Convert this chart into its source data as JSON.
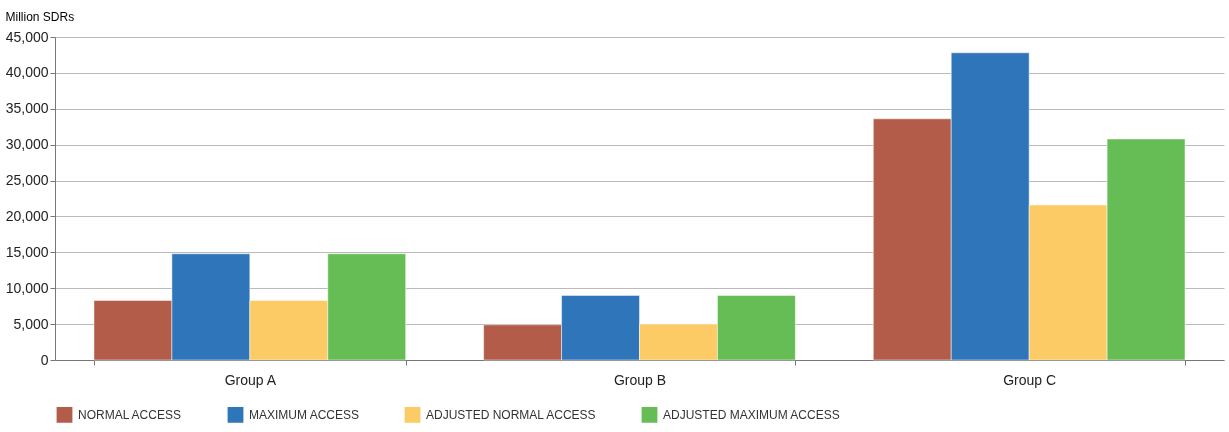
{
  "chart_data": {
    "type": "bar",
    "ylabel": "Million SDRs",
    "categories": [
      "Group A",
      "Group B",
      "Group C"
    ],
    "series": [
      {
        "name": "NORMAL ACCESS",
        "color": "#b35c49",
        "values": [
          8300,
          4900,
          33600
        ]
      },
      {
        "name": "MAXIMUM ACCESS",
        "color": "#2e75b9",
        "values": [
          14800,
          9000,
          42800
        ]
      },
      {
        "name": "ADJUSTED NORMAL ACCESS",
        "color": "#fccb65",
        "values": [
          8300,
          5000,
          21600
        ]
      },
      {
        "name": "ADJUSTED MAXIMUM ACCESS",
        "color": "#67bd55",
        "values": [
          14800,
          9000,
          30800
        ]
      }
    ],
    "ylim": [
      0,
      45000
    ],
    "yticks": [
      0,
      {
        "value": 5000,
        "label": "5,000"
      },
      {
        "value": 10000,
        "label": "10,000"
      },
      {
        "value": 15000,
        "label": "15,000"
      },
      {
        "value": 20000,
        "label": "20,000"
      },
      {
        "value": 25000,
        "label": "25,000"
      },
      {
        "value": 30000,
        "label": "30,000"
      },
      {
        "value": 35000,
        "label": "35,000"
      },
      {
        "value": 40000,
        "label": "40,000"
      },
      {
        "value": 45000,
        "label": "45,000"
      }
    ],
    "grid": "y",
    "legend": "bottom"
  }
}
